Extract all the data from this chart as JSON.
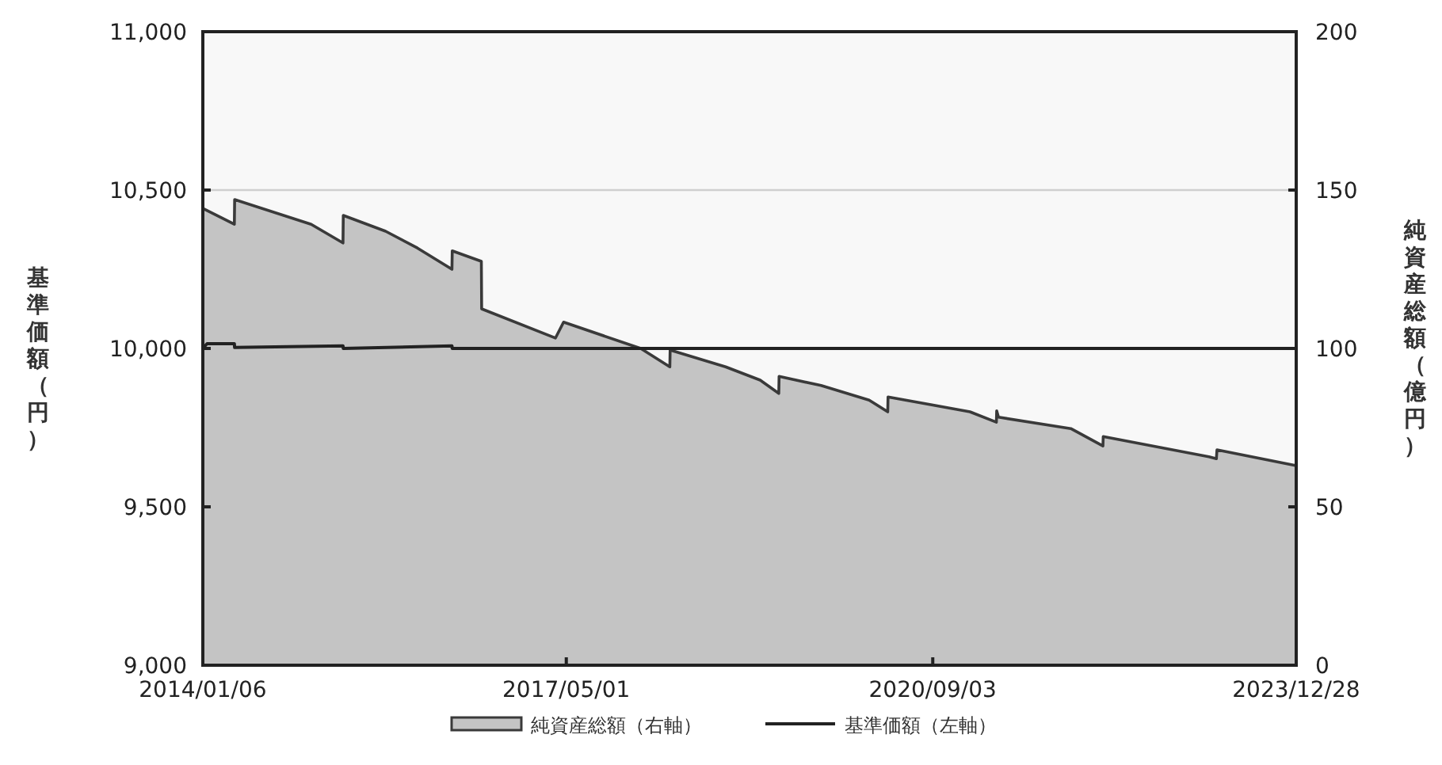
{
  "chart_data": {
    "type": "area",
    "ylabel": "基準価額（円）",
    "y2label": "純資産総額（億円）",
    "xlim": [
      "2014-01-06",
      "2023-12-28"
    ],
    "xticks": [
      {
        "value": "2014-01-06",
        "label": "2014/01/06"
      },
      {
        "value": "2017-05-01",
        "label": "2017/05/01"
      },
      {
        "value": "2020-09-03",
        "label": "2020/09/03"
      },
      {
        "value": "2023-12-28",
        "label": "2023/12/28"
      }
    ],
    "ylim": [
      9000,
      11000
    ],
    "yticks": [
      {
        "value": 9000,
        "label": "9,000"
      },
      {
        "value": 9500,
        "label": "9,500"
      },
      {
        "value": 10000,
        "label": "10,000"
      },
      {
        "value": 10500,
        "label": "10,500"
      },
      {
        "value": 11000,
        "label": "11,000"
      }
    ],
    "y2lim": [
      0,
      200
    ],
    "y2ticks": [
      0,
      50,
      100,
      150,
      200
    ],
    "grid": "y",
    "legend": "bottom",
    "series": [
      {
        "name": "純資産総額（右軸）",
        "axis": "y2",
        "color": "#c4c4c4",
        "x": [
          "2014-01-06",
          "2014-04-21",
          "2014-04-22",
          "2015-01-02",
          "2015-04-18",
          "2015-04-19",
          "2015-09-07",
          "2015-12-22",
          "2016-04-15",
          "2016-04-16",
          "2016-07-22",
          "2016-07-23",
          "2017-03-26",
          "2017-04-22",
          "2018-01-04",
          "2018-04-11",
          "2018-04-12",
          "2018-10-14",
          "2019-02-06",
          "2019-04-09",
          "2019-04-10",
          "2019-08-28",
          "2020-02-04",
          "2020-04-06",
          "2020-04-07",
          "2021-01-05",
          "2021-04-03",
          "2021-04-04",
          "2021-04-10",
          "2021-12-07",
          "2022-03-24",
          "2022-03-25",
          "2023-03-12",
          "2023-04-06",
          "2023-04-08",
          "2023-12-28"
        ],
        "values": [
          144.2,
          139.2,
          147,
          139.2,
          133.3,
          142,
          137,
          131.7,
          125,
          130.8,
          127.5,
          112.5,
          103.3,
          108.3,
          100,
          94.2,
          99.5,
          94.2,
          90,
          85.8,
          91.2,
          88.3,
          83.7,
          80,
          84.7,
          80,
          76.7,
          80.3,
          78.3,
          74.7,
          69.2,
          72.2,
          65.8,
          65.2,
          68,
          63
        ]
      },
      {
        "name": "基準価額（左軸）",
        "type": "line",
        "color": "#222222",
        "x": [
          "2014-01-06",
          "2014-01-20",
          "2014-04-21",
          "2014-04-22",
          "2015-04-18",
          "2015-04-19",
          "2016-04-15",
          "2016-04-16",
          "2023-12-28"
        ],
        "values": [
          10000,
          10015,
          10015,
          10003,
          10008,
          10000,
          10008,
          10000,
          10000
        ]
      }
    ]
  }
}
